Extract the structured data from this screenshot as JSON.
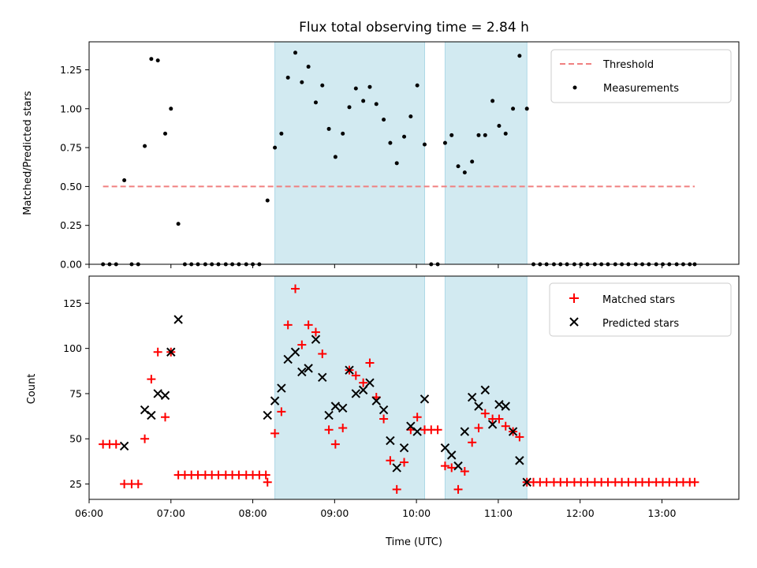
{
  "chart_data": [
    {
      "type": "scatter",
      "title": "Flux total observing time = 2.84 h",
      "xlabel": "",
      "ylabel": "Matched/Predicted stars",
      "xlim": [
        6.0,
        13.94
      ],
      "ylim": [
        0.0,
        1.43
      ],
      "yticks": [
        0.0,
        0.25,
        0.5,
        0.75,
        1.0,
        1.25
      ],
      "ytick_labels": [
        "0.00",
        "0.25",
        "0.50",
        "0.75",
        "1.00",
        "1.25"
      ],
      "shaded_regions": [
        [
          8.27,
          10.1
        ],
        [
          10.35,
          11.35
        ]
      ],
      "shade_color": "#add8e6",
      "threshold": {
        "name": "Threshold",
        "y": 0.5,
        "x_range": [
          6.17,
          13.4
        ],
        "color": "#f08080"
      },
      "series": [
        {
          "name": "Measurements",
          "marker": "dot",
          "color": "#000000",
          "points": [
            [
              6.17,
              0
            ],
            [
              6.25,
              0
            ],
            [
              6.33,
              0
            ],
            [
              6.43,
              0.54
            ],
            [
              6.52,
              0
            ],
            [
              6.6,
              0
            ],
            [
              6.68,
              0.76
            ],
            [
              6.76,
              1.32
            ],
            [
              6.84,
              1.31
            ],
            [
              6.93,
              0.84
            ],
            [
              7.0,
              1.0
            ],
            [
              7.09,
              0.26
            ],
            [
              7.17,
              0
            ],
            [
              7.25,
              0
            ],
            [
              7.33,
              0
            ],
            [
              7.42,
              0
            ],
            [
              7.5,
              0
            ],
            [
              7.58,
              0
            ],
            [
              7.67,
              0
            ],
            [
              7.75,
              0
            ],
            [
              7.83,
              0
            ],
            [
              7.92,
              0
            ],
            [
              8.0,
              0
            ],
            [
              8.08,
              0
            ],
            [
              8.18,
              0.41
            ],
            [
              8.27,
              0.75
            ],
            [
              8.35,
              0.84
            ],
            [
              8.43,
              1.2
            ],
            [
              8.52,
              1.36
            ],
            [
              8.6,
              1.17
            ],
            [
              8.68,
              1.27
            ],
            [
              8.77,
              1.04
            ],
            [
              8.85,
              1.15
            ],
            [
              8.93,
              0.87
            ],
            [
              9.01,
              0.69
            ],
            [
              9.1,
              0.84
            ],
            [
              9.18,
              1.01
            ],
            [
              9.26,
              1.13
            ],
            [
              9.35,
              1.05
            ],
            [
              9.43,
              1.14
            ],
            [
              9.51,
              1.03
            ],
            [
              9.6,
              0.93
            ],
            [
              9.68,
              0.78
            ],
            [
              9.76,
              0.65
            ],
            [
              9.85,
              0.82
            ],
            [
              9.93,
              0.95
            ],
            [
              10.01,
              1.15
            ],
            [
              10.1,
              0.77
            ],
            [
              10.18,
              0
            ],
            [
              10.26,
              0
            ],
            [
              10.35,
              0.78
            ],
            [
              10.43,
              0.83
            ],
            [
              10.51,
              0.63
            ],
            [
              10.59,
              0.59
            ],
            [
              10.68,
              0.66
            ],
            [
              10.76,
              0.83
            ],
            [
              10.84,
              0.83
            ],
            [
              10.93,
              1.05
            ],
            [
              11.01,
              0.89
            ],
            [
              11.09,
              0.84
            ],
            [
              11.18,
              1.0
            ],
            [
              11.26,
              1.34
            ],
            [
              11.35,
              1.0
            ],
            [
              11.43,
              0
            ],
            [
              11.51,
              0
            ],
            [
              11.59,
              0
            ],
            [
              11.68,
              0
            ],
            [
              11.76,
              0
            ],
            [
              11.84,
              0
            ],
            [
              11.93,
              0
            ],
            [
              12.01,
              0
            ],
            [
              12.09,
              0
            ],
            [
              12.18,
              0
            ],
            [
              12.26,
              0
            ],
            [
              12.34,
              0
            ],
            [
              12.43,
              0
            ],
            [
              12.51,
              0
            ],
            [
              12.59,
              0
            ],
            [
              12.68,
              0
            ],
            [
              12.76,
              0
            ],
            [
              12.84,
              0
            ],
            [
              12.93,
              0
            ],
            [
              13.01,
              0
            ],
            [
              13.09,
              0
            ],
            [
              13.18,
              0
            ],
            [
              13.26,
              0
            ],
            [
              13.34,
              0
            ],
            [
              13.4,
              0
            ]
          ]
        }
      ],
      "legend": {
        "position": "top-right",
        "entries": [
          "Threshold",
          "Measurements"
        ]
      }
    },
    {
      "type": "scatter",
      "title": "",
      "xlabel": "Time (UTC)",
      "ylabel": "Count",
      "xlim": [
        6.0,
        13.94
      ],
      "ylim": [
        16.5,
        140
      ],
      "xticks": [
        6,
        7,
        8,
        9,
        10,
        11,
        12,
        13
      ],
      "xtick_labels": [
        "06:00",
        "07:00",
        "08:00",
        "09:00",
        "10:00",
        "11:00",
        "12:00",
        "13:00"
      ],
      "yticks": [
        25,
        50,
        75,
        100,
        125
      ],
      "ytick_labels": [
        "25",
        "50",
        "75",
        "100",
        "125"
      ],
      "shaded_regions": [
        [
          8.27,
          10.1
        ],
        [
          10.35,
          11.35
        ]
      ],
      "shade_color": "#add8e6",
      "series": [
        {
          "name": "Matched stars",
          "marker": "plus",
          "color": "#ff0000",
          "points": [
            [
              6.17,
              47
            ],
            [
              6.25,
              47
            ],
            [
              6.33,
              47
            ],
            [
              6.43,
              25
            ],
            [
              6.52,
              25
            ],
            [
              6.6,
              25
            ],
            [
              6.68,
              50
            ],
            [
              6.76,
              83
            ],
            [
              6.84,
              98
            ],
            [
              6.93,
              62
            ],
            [
              7.0,
              98
            ],
            [
              7.09,
              30
            ],
            [
              7.17,
              30
            ],
            [
              7.25,
              30
            ],
            [
              7.33,
              30
            ],
            [
              7.42,
              30
            ],
            [
              7.5,
              30
            ],
            [
              7.58,
              30
            ],
            [
              7.67,
              30
            ],
            [
              7.75,
              30
            ],
            [
              7.83,
              30
            ],
            [
              7.92,
              30
            ],
            [
              8.0,
              30
            ],
            [
              8.08,
              30
            ],
            [
              8.16,
              30
            ],
            [
              8.18,
              26
            ],
            [
              8.27,
              53
            ],
            [
              8.35,
              65
            ],
            [
              8.43,
              113
            ],
            [
              8.52,
              133
            ],
            [
              8.6,
              102
            ],
            [
              8.68,
              113
            ],
            [
              8.77,
              109
            ],
            [
              8.85,
              97
            ],
            [
              8.93,
              55
            ],
            [
              9.01,
              47
            ],
            [
              9.1,
              56
            ],
            [
              9.18,
              88
            ],
            [
              9.26,
              85
            ],
            [
              9.35,
              81
            ],
            [
              9.43,
              92
            ],
            [
              9.51,
              73
            ],
            [
              9.6,
              61
            ],
            [
              9.68,
              38
            ],
            [
              9.76,
              22
            ],
            [
              9.85,
              37
            ],
            [
              9.93,
              55
            ],
            [
              10.01,
              62
            ],
            [
              10.1,
              55
            ],
            [
              10.18,
              55
            ],
            [
              10.26,
              55
            ],
            [
              10.35,
              35
            ],
            [
              10.43,
              34
            ],
            [
              10.51,
              22
            ],
            [
              10.59,
              32
            ],
            [
              10.68,
              48
            ],
            [
              10.76,
              56
            ],
            [
              10.84,
              64
            ],
            [
              10.93,
              61
            ],
            [
              11.01,
              61
            ],
            [
              11.09,
              57
            ],
            [
              11.18,
              54
            ],
            [
              11.26,
              51
            ],
            [
              11.35,
              26
            ],
            [
              11.43,
              26
            ],
            [
              11.51,
              26
            ],
            [
              11.59,
              26
            ],
            [
              11.68,
              26
            ],
            [
              11.76,
              26
            ],
            [
              11.84,
              26
            ],
            [
              11.93,
              26
            ],
            [
              12.01,
              26
            ],
            [
              12.09,
              26
            ],
            [
              12.18,
              26
            ],
            [
              12.26,
              26
            ],
            [
              12.34,
              26
            ],
            [
              12.43,
              26
            ],
            [
              12.51,
              26
            ],
            [
              12.59,
              26
            ],
            [
              12.68,
              26
            ],
            [
              12.76,
              26
            ],
            [
              12.84,
              26
            ],
            [
              12.93,
              26
            ],
            [
              13.01,
              26
            ],
            [
              13.09,
              26
            ],
            [
              13.18,
              26
            ],
            [
              13.26,
              26
            ],
            [
              13.34,
              26
            ],
            [
              13.4,
              26
            ]
          ]
        },
        {
          "name": "Predicted stars",
          "marker": "x",
          "color": "#000000",
          "points": [
            [
              6.43,
              46
            ],
            [
              6.68,
              66
            ],
            [
              6.76,
              63
            ],
            [
              6.84,
              75
            ],
            [
              6.93,
              74
            ],
            [
              7.0,
              98
            ],
            [
              7.09,
              116
            ],
            [
              8.18,
              63
            ],
            [
              8.27,
              71
            ],
            [
              8.35,
              78
            ],
            [
              8.43,
              94
            ],
            [
              8.52,
              98
            ],
            [
              8.6,
              87
            ],
            [
              8.68,
              89
            ],
            [
              8.77,
              105
            ],
            [
              8.85,
              84
            ],
            [
              8.93,
              63
            ],
            [
              9.01,
              68
            ],
            [
              9.1,
              67
            ],
            [
              9.18,
              88
            ],
            [
              9.26,
              75
            ],
            [
              9.35,
              77
            ],
            [
              9.43,
              81
            ],
            [
              9.51,
              71
            ],
            [
              9.6,
              66
            ],
            [
              9.68,
              49
            ],
            [
              9.76,
              34
            ],
            [
              9.85,
              45
            ],
            [
              9.93,
              57
            ],
            [
              10.01,
              54
            ],
            [
              10.1,
              72
            ],
            [
              10.35,
              45
            ],
            [
              10.43,
              41
            ],
            [
              10.51,
              35
            ],
            [
              10.59,
              54
            ],
            [
              10.68,
              73
            ],
            [
              10.76,
              68
            ],
            [
              10.84,
              77
            ],
            [
              10.93,
              58
            ],
            [
              11.01,
              69
            ],
            [
              11.09,
              68
            ],
            [
              11.18,
              54
            ],
            [
              11.26,
              38
            ],
            [
              11.35,
              26
            ]
          ]
        }
      ],
      "legend": {
        "position": "top-right",
        "entries": [
          "Matched stars",
          "Predicted stars"
        ]
      }
    }
  ]
}
